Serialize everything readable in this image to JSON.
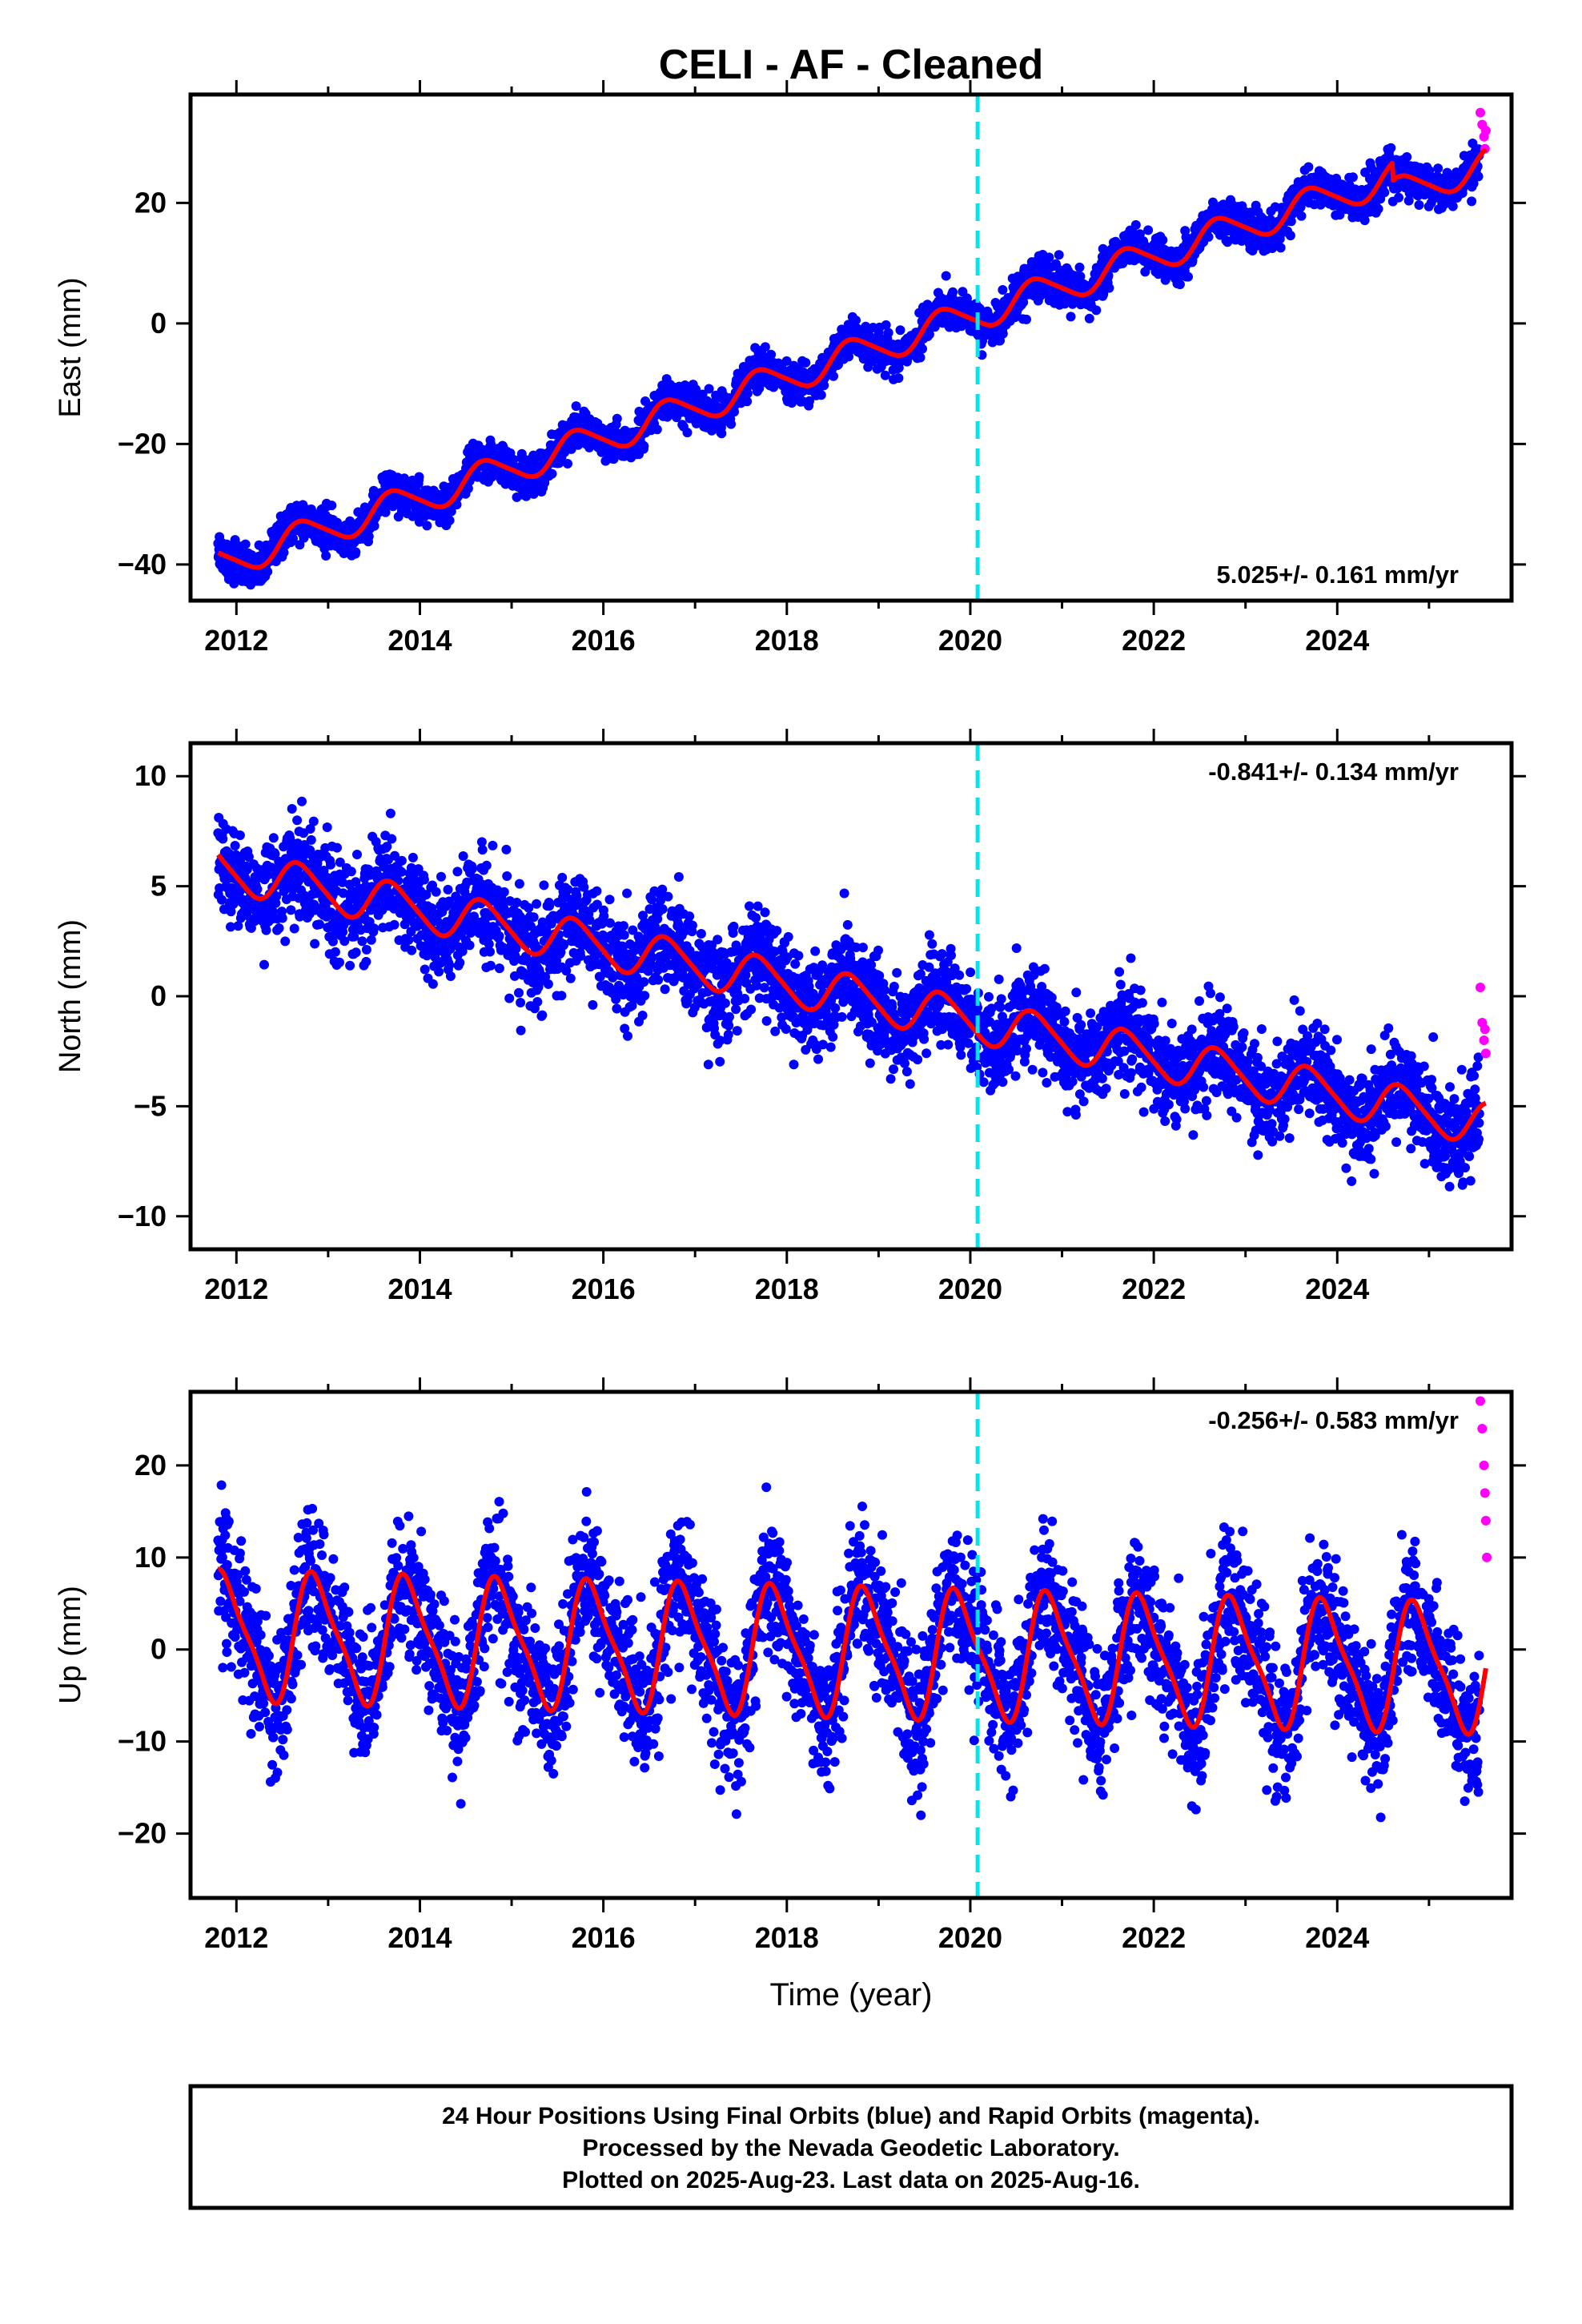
{
  "title": "CELI  - AF - Cleaned",
  "footer": {
    "line1": "24 Hour Positions Using Final Orbits (blue) and Rapid Orbits (magenta).",
    "line2": "Processed by the Nevada Geodetic Laboratory.",
    "line3": "Plotted on 2025-Aug-23. Last data on 2025-Aug-16."
  },
  "colors": {
    "final_orbits": "#0000ff",
    "rapid_orbits": "#ff00ff",
    "model": "#ff0000",
    "event_line": "#00e5ee"
  },
  "chart_data": [
    {
      "type": "scatter",
      "ylabel": "East (mm)",
      "xlabel": "",
      "xlim": [
        2011.5,
        2025.9
      ],
      "ylim": [
        -46,
        38
      ],
      "xticks": [
        2012,
        2014,
        2016,
        2018,
        2020,
        2022,
        2024
      ],
      "yticks": [
        -40,
        -20,
        0,
        20
      ],
      "rate_label": "5.025+/- 0.161 mm/yr",
      "rate_position": "bottom-right",
      "event_line_x": 2020.08,
      "model": {
        "start_x": 2011.8,
        "start_y": -40.0,
        "rate": 5.025,
        "annual_amp": 2.6,
        "annual_phase": 0.47,
        "semiannual_amp": 0.4,
        "offset_after_2024.6": -3.0,
        "end_x": 2025.62
      },
      "final_orbits": {
        "x_range": [
          2011.8,
          2025.55
        ],
        "scatter_sd": 1.6
      },
      "rapid_orbits": {
        "x": [
          2025.56,
          2025.58,
          2025.6,
          2025.61,
          2025.62
        ],
        "y": [
          35,
          33,
          31,
          29,
          32
        ]
      }
    },
    {
      "type": "scatter",
      "ylabel": "North (mm)",
      "xlabel": "",
      "xlim": [
        2011.5,
        2025.9
      ],
      "ylim": [
        -11.5,
        11.5
      ],
      "xticks": [
        2012,
        2014,
        2016,
        2018,
        2020,
        2022,
        2024
      ],
      "yticks": [
        -10,
        -5,
        0,
        5,
        10
      ],
      "rate_label": "-0.841+/- 0.134 mm/yr",
      "rate_position": "top-right",
      "event_line_x": 2020.08,
      "model": {
        "start_x": 2011.8,
        "start_y": 5.8,
        "rate": -0.841,
        "annual_amp": 0.95,
        "annual_phase": 0.45,
        "semiannual_amp": 0.15,
        "end_x": 2025.62
      },
      "final_orbits": {
        "x_range": [
          2011.8,
          2025.55
        ],
        "scatter_sd": 1.1
      },
      "rapid_orbits": {
        "x": [
          2025.56,
          2025.58,
          2025.6,
          2025.61,
          2025.62
        ],
        "y": [
          0.4,
          -1.2,
          -2.0,
          -1.5,
          -2.6
        ]
      }
    },
    {
      "type": "scatter",
      "ylabel": "Up (mm)",
      "xlabel": "Time (year)",
      "xlim": [
        2011.5,
        2025.9
      ],
      "ylim": [
        -27,
        28
      ],
      "xticks": [
        2012,
        2014,
        2016,
        2018,
        2020,
        2022,
        2024
      ],
      "yticks": [
        -20,
        -10,
        0,
        10,
        20
      ],
      "rate_label": "-0.256+/- 0.583 mm/yr",
      "rate_position": "top-right",
      "event_line_x": 2020.08,
      "model": {
        "start_x": 2011.8,
        "start_y": 1.5,
        "rate": -0.256,
        "annual_amp": 6.6,
        "annual_phase": 0.62,
        "semiannual_amp": 1.6,
        "end_x": 2025.62
      },
      "final_orbits": {
        "x_range": [
          2011.8,
          2025.55
        ],
        "scatter_sd": 3.8
      },
      "rapid_orbits": {
        "x": [
          2025.56,
          2025.58,
          2025.6,
          2025.61,
          2025.62,
          2025.63
        ],
        "y": [
          27,
          24,
          20,
          17,
          14,
          10
        ]
      }
    }
  ]
}
